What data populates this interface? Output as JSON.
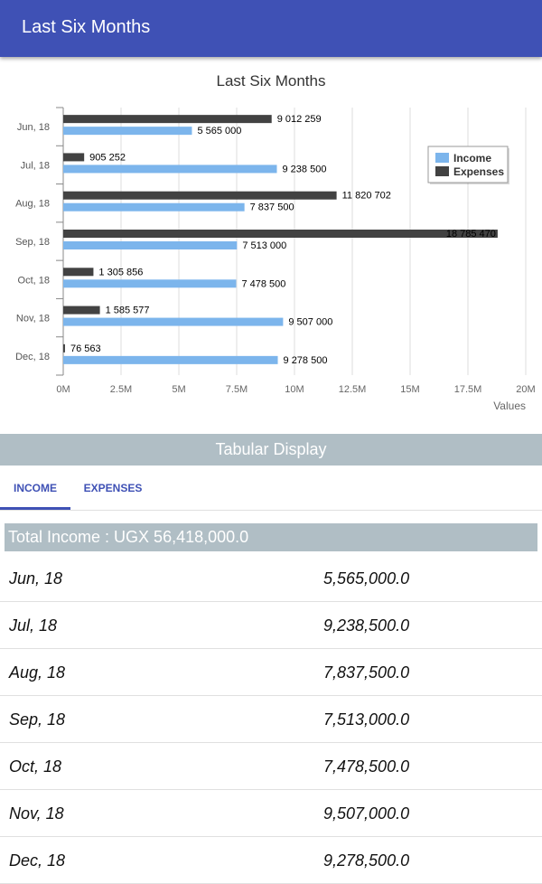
{
  "app_bar": {
    "title": "Last Six Months"
  },
  "chart_data": {
    "type": "bar",
    "orientation": "horizontal",
    "title": "Last Six Months",
    "xlabel": "Values",
    "categories": [
      "Jun, 18",
      "Jul, 18",
      "Aug, 18",
      "Sep, 18",
      "Oct, 18",
      "Nov, 18",
      "Dec, 18"
    ],
    "series": [
      {
        "name": "Expenses",
        "color": "#424242",
        "values": [
          9012259,
          905252,
          11820702,
          18785470,
          1305856,
          1585577,
          76563
        ],
        "labels": [
          "9 012 259",
          "905 252",
          "11 820 702",
          "18 785 470",
          "1 305 856",
          "1 585 577",
          "76 563"
        ]
      },
      {
        "name": "Income",
        "color": "#7cb5ec",
        "values": [
          5565000,
          9238500,
          7837500,
          7513000,
          7478500,
          9507000,
          9278500
        ],
        "labels": [
          "5 565 000",
          "9 238 500",
          "7 837 500",
          "7 513 000",
          "7 478 500",
          "9 507 000",
          "9 278 500"
        ]
      }
    ],
    "xlim": [
      0,
      20000000
    ],
    "x_ticks": [
      "0M",
      "2.5M",
      "5M",
      "7.5M",
      "10M",
      "12.5M",
      "15M",
      "17.5M",
      "20M"
    ],
    "grid": true,
    "legend": {
      "position": "right",
      "entries": [
        "Income",
        "Expenses"
      ]
    }
  },
  "tabular": {
    "header": "Tabular Display"
  },
  "tabs": {
    "income": "INCOME",
    "expenses": "EXPENSES",
    "active": "income"
  },
  "income": {
    "total": "Total Income : UGX 56,418,000.0",
    "rows": [
      {
        "month": "Jun, 18",
        "value": "5,565,000.0"
      },
      {
        "month": "Jul, 18",
        "value": "9,238,500.0"
      },
      {
        "month": "Aug, 18",
        "value": "7,837,500.0"
      },
      {
        "month": "Sep, 18",
        "value": "7,513,000.0"
      },
      {
        "month": "Oct, 18",
        "value": "7,478,500.0"
      },
      {
        "month": "Nov, 18",
        "value": "9,507,000.0"
      },
      {
        "month": "Dec, 18",
        "value": "9,278,500.0"
      }
    ]
  }
}
